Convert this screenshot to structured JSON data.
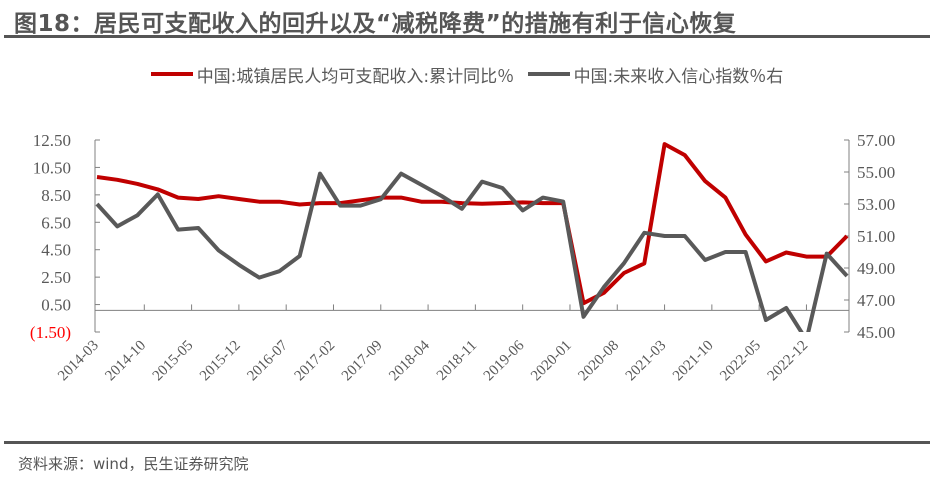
{
  "title": "图18：居民可支配收入的回升以及“减税降费”的措施有利于信心恢复",
  "source": "资料来源：wind，民生证券研究院",
  "chart_data": {
    "type": "line",
    "title": "图18：居民可支配收入的回升以及“减税降费”的措施有利于信心恢复",
    "frequency": "quarterly",
    "start": "2014-03",
    "x_tick_labels": [
      "2014-03",
      "2014-10",
      "2015-05",
      "2015-12",
      "2016-07",
      "2017-02",
      "2017-09",
      "2018-04",
      "2018-11",
      "2019-06",
      "2020-01",
      "2020-08",
      "2021-03",
      "2021-10",
      "2022-05",
      "2022-12"
    ],
    "left_axis": {
      "ticks": [
        "12.50",
        "10.50",
        "8.50",
        "6.50",
        "4.50",
        "2.50",
        "0.50",
        "(1.50)"
      ],
      "range": [
        -1.5,
        12.5
      ]
    },
    "right_axis": {
      "ticks": [
        "57.00",
        "55.00",
        "53.00",
        "51.00",
        "49.00",
        "47.00",
        "45.00"
      ],
      "range": [
        45,
        57
      ]
    },
    "legend_position": "top",
    "series": [
      {
        "name": "中国:城镇居民人均可支配收入:累计同比％",
        "axis": "left",
        "color": "#C00000",
        "values": [
          9.8,
          9.6,
          9.3,
          8.9,
          8.3,
          8.2,
          8.4,
          8.2,
          8.0,
          8.0,
          7.8,
          7.9,
          7.9,
          8.1,
          8.3,
          8.3,
          8.0,
          8.0,
          7.9,
          7.85,
          7.9,
          7.95,
          7.9,
          7.9,
          0.6,
          1.35,
          2.8,
          3.5,
          12.2,
          11.4,
          9.5,
          8.3,
          5.6,
          3.65,
          4.3,
          4.0,
          4.0,
          5.5
        ]
      },
      {
        "name": "中国:未来收入信心指数％右",
        "axis": "right",
        "color": "#595959",
        "values": [
          53.0,
          51.6,
          52.3,
          53.6,
          51.4,
          51.5,
          50.1,
          49.2,
          48.4,
          48.8,
          49.75,
          54.9,
          52.9,
          52.9,
          53.3,
          54.9,
          54.2,
          53.5,
          52.7,
          54.4,
          54.0,
          52.6,
          53.4,
          53.15,
          45.95,
          47.8,
          49.3,
          51.2,
          51.0,
          51.0,
          49.5,
          50.0,
          50.0,
          45.75,
          46.5,
          44.5,
          49.9,
          48.5
        ]
      }
    ]
  }
}
